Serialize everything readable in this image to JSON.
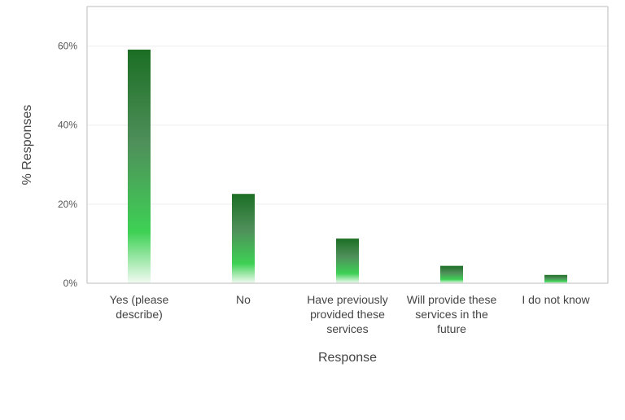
{
  "chart_data": {
    "type": "bar",
    "title": "",
    "xlabel": "Response",
    "ylabel": "% Responses",
    "categories": [
      [
        "Yes (please",
        "describe)"
      ],
      [
        "No"
      ],
      [
        "Have previously",
        "provided these",
        "services"
      ],
      [
        "Will provide these",
        "services in the",
        "future"
      ],
      [
        "I do not know"
      ]
    ],
    "values": [
      59.1,
      22.6,
      11.3,
      4.4,
      2.1
    ],
    "ylim": [
      0,
      70
    ],
    "yticks": [
      0,
      20,
      40,
      60
    ],
    "ytick_format": "{v}%",
    "grid": true,
    "legend": "none",
    "colors": {
      "bar_top": "#1b6e24",
      "bar_mid": "#4f8f5a",
      "bar_bright": "#3ed155",
      "bar_fade": "#f2fbf3",
      "grid": "#eeeeee",
      "axis": "#bbbbbb"
    }
  }
}
